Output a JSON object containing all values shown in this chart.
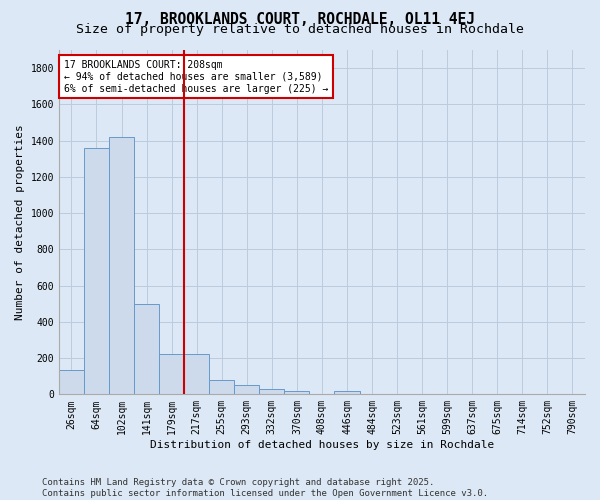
{
  "title_line1": "17, BROOKLANDS COURT, ROCHDALE, OL11 4EJ",
  "title_line2": "Size of property relative to detached houses in Rochdale",
  "xlabel": "Distribution of detached houses by size in Rochdale",
  "ylabel": "Number of detached properties",
  "categories": [
    "26sqm",
    "64sqm",
    "102sqm",
    "141sqm",
    "179sqm",
    "217sqm",
    "255sqm",
    "293sqm",
    "332sqm",
    "370sqm",
    "408sqm",
    "446sqm",
    "484sqm",
    "523sqm",
    "561sqm",
    "599sqm",
    "637sqm",
    "675sqm",
    "714sqm",
    "752sqm",
    "790sqm"
  ],
  "values": [
    135,
    1360,
    1420,
    500,
    225,
    225,
    80,
    50,
    28,
    20,
    0,
    20,
    0,
    0,
    0,
    0,
    0,
    0,
    0,
    0,
    0
  ],
  "bar_color": "#cddaeb",
  "bar_edge_color": "#6699cc",
  "vertical_line_color": "#cc0000",
  "annotation_text": "17 BROOKLANDS COURT: 208sqm\n← 94% of detached houses are smaller (3,589)\n6% of semi-detached houses are larger (225) →",
  "annotation_box_edge_color": "#cc0000",
  "annotation_box_facecolor": "white",
  "ylim": [
    0,
    1900
  ],
  "yticks": [
    0,
    200,
    400,
    600,
    800,
    1000,
    1200,
    1400,
    1600,
    1800
  ],
  "grid_color": "#bbccdd",
  "bg_color": "#dce8f5",
  "footer_line1": "Contains HM Land Registry data © Crown copyright and database right 2025.",
  "footer_line2": "Contains public sector information licensed under the Open Government Licence v3.0.",
  "title1_fontsize": 10.5,
  "title2_fontsize": 9.5,
  "axis_label_fontsize": 8,
  "tick_fontsize": 7,
  "annotation_fontsize": 7,
  "footer_fontsize": 6.5,
  "vline_x_index": 5
}
